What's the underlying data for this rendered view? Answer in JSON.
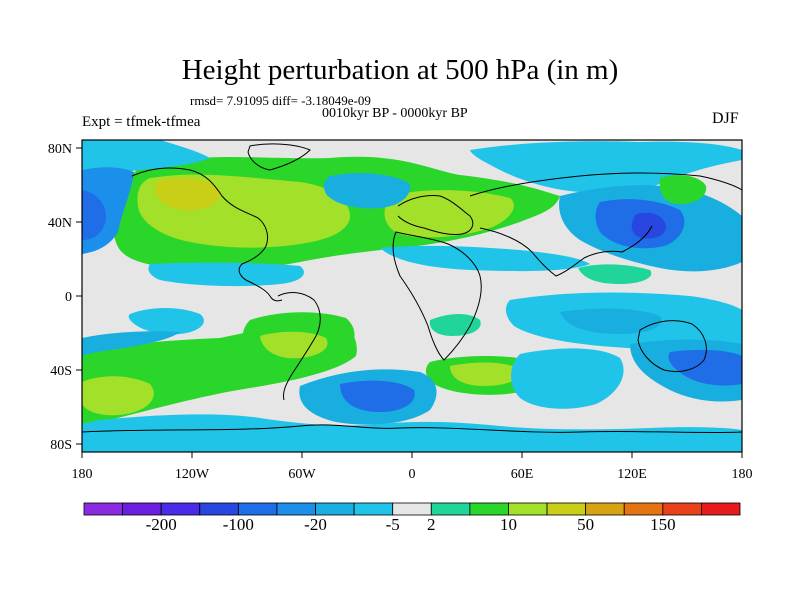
{
  "header": {
    "title": "Height perturbation at 500 hPa (in m)",
    "stats": "rmsd= 7.91095 diff= -3.18049e-09",
    "period": "0010kyr BP - 0000kyr BP",
    "experiment": "Expt = tfmek-tfmea",
    "season": "DJF"
  },
  "axes": {
    "lat_ticks": [
      "80N",
      "40N",
      "0",
      "40S",
      "80S"
    ],
    "lon_ticks": [
      "180",
      "120W",
      "60W",
      "0",
      "60E",
      "120E",
      "180"
    ]
  },
  "colorbar": {
    "labels": [
      "-200",
      "-100",
      "-20",
      "-5",
      "2",
      "10",
      "50",
      "150"
    ],
    "colors": [
      "#8a2be2",
      "#6a1fe0",
      "#4a2ce8",
      "#2846e0",
      "#1f6ee8",
      "#1c8fea",
      "#19aee0",
      "#20c4e8",
      "#e6e6e6",
      "#20d59a",
      "#2bd62b",
      "#a3e02a",
      "#c8cf16",
      "#d8a312",
      "#e67312",
      "#e84018",
      "#e61a1a"
    ]
  },
  "colors": {
    "background": "#e6e6e6",
    "coastline": "#000000"
  }
}
